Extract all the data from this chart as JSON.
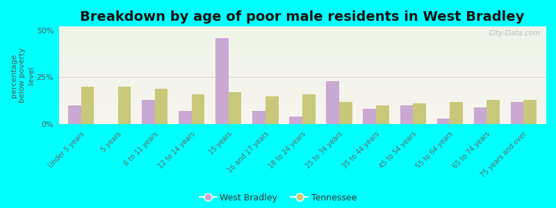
{
  "title": "Breakdown by age of poor male residents in West Bradley",
  "ylabel": "percentage\nbelow poverty\nlevel",
  "categories": [
    "Under 5 years",
    "5 years",
    "6 to 11 years",
    "12 to 14 years",
    "15 years",
    "16 and 17 years",
    "18 to 24 years",
    "25 to 34 years",
    "35 to 44 years",
    "45 to 54 years",
    "55 to 64 years",
    "65 to 74 years",
    "75 years and over"
  ],
  "west_bradley": [
    10,
    0,
    13,
    7,
    46,
    7,
    4,
    23,
    8,
    10,
    3,
    9,
    12
  ],
  "tennessee": [
    20,
    20,
    19,
    16,
    17,
    15,
    16,
    12,
    10,
    11,
    12,
    13,
    13
  ],
  "west_bradley_color": "#c9a8d4",
  "tennessee_color": "#c8c87a",
  "bg_color": "#00ffff",
  "ylim": [
    0,
    52
  ],
  "yticks": [
    0,
    25,
    50
  ],
  "ytick_labels": [
    "0%",
    "25%",
    "50%"
  ],
  "title_fontsize": 14,
  "axis_label_fontsize": 8,
  "tick_fontsize": 8,
  "legend_west_bradley": "West Bradley",
  "legend_tennessee": "Tennessee",
  "watermark": "City-Data.com"
}
